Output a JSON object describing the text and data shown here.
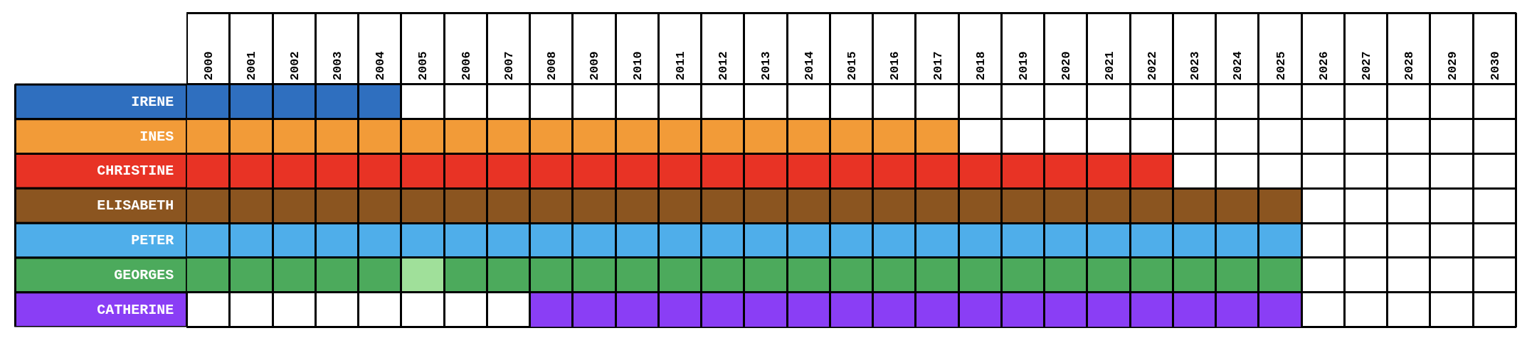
{
  "chart_data": {
    "type": "bar",
    "orientation": "horizontal",
    "categories": [
      "IRENE",
      "INES",
      "CHRISTINE",
      "ELISABETH",
      "PETER",
      "GEORGES",
      "CATHERINE"
    ],
    "series": [
      {
        "colors": [
          "#2f6fbf",
          "#f29b38",
          "#e83325",
          "#8b5520",
          "#4faeea",
          "#4caa5c",
          "#8a3ef5"
        ],
        "base": [
          2000,
          2000,
          2000,
          2000,
          2000,
          2000,
          2008
        ],
        "values": [
          5,
          18,
          23,
          26,
          26,
          5,
          18
        ]
      },
      {
        "color": "#a0e09a",
        "base": [
          null,
          null,
          null,
          null,
          null,
          2005,
          null
        ],
        "values": [
          null,
          null,
          null,
          null,
          null,
          1,
          null
        ]
      },
      {
        "color": "#4caa5c",
        "base": [
          null,
          null,
          null,
          null,
          null,
          2006,
          null
        ],
        "values": [
          null,
          null,
          null,
          null,
          null,
          20,
          null
        ]
      }
    ],
    "xlim": [
      2000,
      2031
    ],
    "xticks": [
      {
        "value": 2000.5,
        "label": "2000"
      },
      {
        "value": 2001.5,
        "label": "2001"
      },
      {
        "value": 2002.5,
        "label": "2002"
      },
      {
        "value": 2003.5,
        "label": "2003"
      },
      {
        "value": 2004.5,
        "label": "2004"
      },
      {
        "value": 2005.5,
        "label": "2005"
      },
      {
        "value": 2006.5,
        "label": "2006"
      },
      {
        "value": 2007.5,
        "label": "2007"
      },
      {
        "value": 2008.5,
        "label": "2008"
      },
      {
        "value": 2009.5,
        "label": "2009"
      },
      {
        "value": 2010.5,
        "label": "2010"
      },
      {
        "value": 2011.5,
        "label": "2011"
      },
      {
        "value": 2012.5,
        "label": "2012"
      },
      {
        "value": 2013.5,
        "label": "2013"
      },
      {
        "value": 2014.5,
        "label": "2014"
      },
      {
        "value": 2015.5,
        "label": "2015"
      },
      {
        "value": 2016.5,
        "label": "2016"
      },
      {
        "value": 2017.5,
        "label": "2017"
      },
      {
        "value": 2018.5,
        "label": "2018"
      },
      {
        "value": 2019.5,
        "label": "2019"
      },
      {
        "value": 2020.5,
        "label": "2020"
      },
      {
        "value": 2021.5,
        "label": "2021"
      },
      {
        "value": 2022.5,
        "label": "2022"
      },
      {
        "value": 2023.5,
        "label": "2023"
      },
      {
        "value": 2024.5,
        "label": "2024"
      },
      {
        "value": 2025.5,
        "label": "2025"
      },
      {
        "value": 2026.5,
        "label": "2026"
      },
      {
        "value": 2027.5,
        "label": "2027"
      },
      {
        "value": 2028.5,
        "label": "2028"
      },
      {
        "value": 2029.5,
        "label": "2029"
      },
      {
        "value": 2030.5,
        "label": "2030"
      }
    ],
    "grid": true
  }
}
